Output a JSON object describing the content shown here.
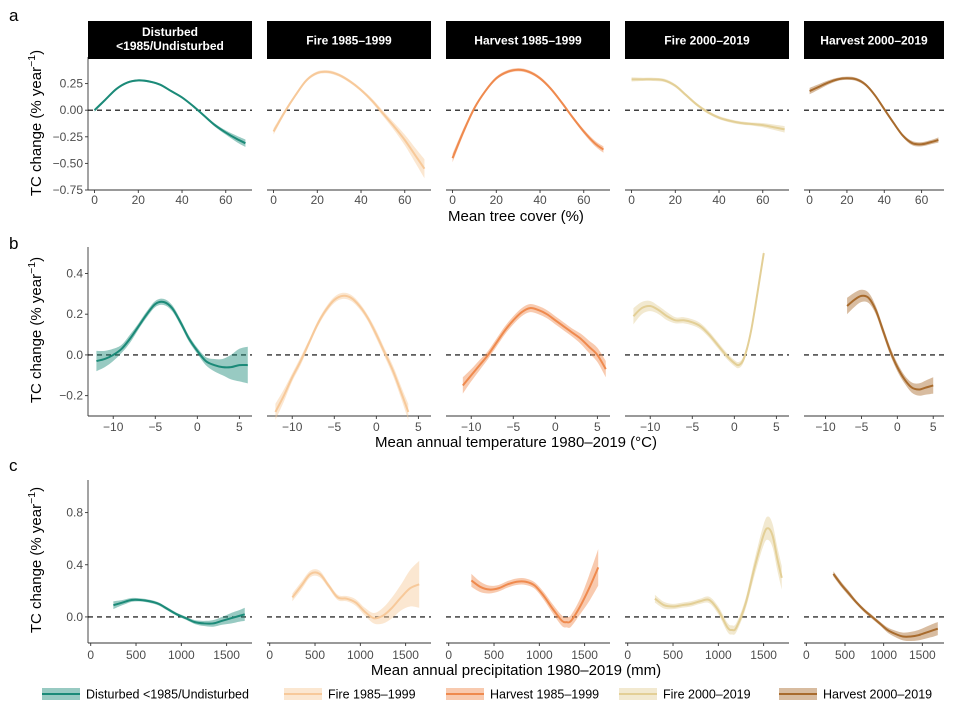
{
  "colors": {
    "Disturbed <1985/Undisturbed": "#1b8a78",
    "Fire 1985–1999": "#f7c99a",
    "Harvest 1985–1999": "#ef8a4e",
    "Fire 2000–2019": "#e3cf96",
    "Harvest 2000–2019": "#a86b2d"
  },
  "panel_letters": [
    "a",
    "b",
    "c"
  ],
  "legend": {
    "entries": [
      "Disturbed <1985/Undisturbed",
      "Fire 1985–1999",
      "Harvest 1985–1999",
      "Fire 2000–2019",
      "Harvest 2000–2019"
    ],
    "placement": "bottom"
  },
  "chart_data": [
    {
      "type": "line",
      "panel": "a",
      "xlabel": "Mean tree cover (%)",
      "ylabel": "TC change (% year⁻¹)",
      "xlim": [
        -3,
        72
      ],
      "ylim": [
        -0.75,
        0.5
      ],
      "xticks": [
        0,
        20,
        40,
        60
      ],
      "yticks": [
        -0.75,
        -0.5,
        -0.25,
        0.0,
        0.25
      ],
      "ytick_labels": [
        "−0.75",
        "−0.50",
        "−0.25",
        "0.00",
        "0.25"
      ],
      "reference_line": 0,
      "facets": [
        {
          "title": "Disturbed\n<1985/Undisturbed",
          "name": "Disturbed <1985/Undisturbed",
          "x": [
            0,
            5,
            10,
            15,
            20,
            25,
            30,
            35,
            40,
            45,
            50,
            55,
            60,
            65,
            69
          ],
          "y": [
            0.0,
            0.1,
            0.2,
            0.26,
            0.28,
            0.27,
            0.24,
            0.18,
            0.12,
            0.04,
            -0.05,
            -0.14,
            -0.21,
            -0.27,
            -0.31
          ],
          "band": [
            0.015,
            0.012,
            0.01,
            0.01,
            0.01,
            0.01,
            0.01,
            0.01,
            0.01,
            0.01,
            0.012,
            0.015,
            0.02,
            0.03,
            0.035
          ]
        },
        {
          "title": "Fire 1985–1999",
          "name": "Fire 1985–1999",
          "x": [
            0,
            5,
            10,
            15,
            20,
            25,
            30,
            35,
            40,
            45,
            50,
            55,
            60,
            65,
            69
          ],
          "y": [
            -0.2,
            -0.02,
            0.14,
            0.28,
            0.35,
            0.36,
            0.33,
            0.27,
            0.19,
            0.09,
            -0.03,
            -0.15,
            -0.28,
            -0.43,
            -0.55
          ],
          "band": [
            0.03,
            0.02,
            0.015,
            0.015,
            0.015,
            0.015,
            0.015,
            0.015,
            0.015,
            0.02,
            0.025,
            0.035,
            0.05,
            0.07,
            0.09
          ]
        },
        {
          "title": "Harvest 1985–1999",
          "name": "Harvest 1985–1999",
          "x": [
            0,
            5,
            10,
            15,
            20,
            25,
            30,
            35,
            40,
            45,
            50,
            55,
            60,
            65,
            69
          ],
          "y": [
            -0.45,
            -0.2,
            0.02,
            0.18,
            0.3,
            0.36,
            0.38,
            0.36,
            0.3,
            0.2,
            0.07,
            -0.07,
            -0.2,
            -0.31,
            -0.37
          ],
          "band": [
            0.04,
            0.03,
            0.02,
            0.015,
            0.015,
            0.015,
            0.015,
            0.015,
            0.015,
            0.015,
            0.015,
            0.015,
            0.02,
            0.025,
            0.03
          ]
        },
        {
          "title": "Fire 2000–2019",
          "name": "Fire 2000–2019",
          "x": [
            0,
            5,
            10,
            15,
            20,
            25,
            30,
            35,
            40,
            45,
            50,
            55,
            60,
            65,
            70
          ],
          "y": [
            0.29,
            0.29,
            0.29,
            0.28,
            0.23,
            0.14,
            0.05,
            -0.02,
            -0.07,
            -0.1,
            -0.12,
            -0.13,
            -0.14,
            -0.16,
            -0.18
          ],
          "band": [
            0.02,
            0.015,
            0.015,
            0.015,
            0.015,
            0.015,
            0.015,
            0.015,
            0.015,
            0.015,
            0.015,
            0.015,
            0.02,
            0.025,
            0.03
          ]
        },
        {
          "title": "Harvest 2000–2019",
          "name": "Harvest 2000–2019",
          "x": [
            0,
            5,
            10,
            15,
            20,
            25,
            30,
            35,
            40,
            45,
            50,
            55,
            60,
            65,
            69
          ],
          "y": [
            0.18,
            0.22,
            0.26,
            0.29,
            0.3,
            0.29,
            0.24,
            0.14,
            0.01,
            -0.12,
            -0.24,
            -0.31,
            -0.32,
            -0.3,
            -0.28
          ],
          "band": [
            0.03,
            0.025,
            0.02,
            0.015,
            0.015,
            0.015,
            0.015,
            0.015,
            0.015,
            0.015,
            0.015,
            0.02,
            0.02,
            0.02,
            0.025
          ]
        }
      ]
    },
    {
      "type": "line",
      "panel": "b",
      "xlabel": "Mean annual temperature 1980–2019 (°C)",
      "ylabel": "TC change (% year⁻¹)",
      "xlim": [
        -13,
        6.5
      ],
      "ylim": [
        -0.3,
        0.53
      ],
      "xticks": [
        -10,
        -5,
        0,
        5
      ],
      "xtick_labels": [
        "−10",
        "−5",
        "0",
        "5"
      ],
      "yticks": [
        -0.2,
        0.0,
        0.2,
        0.4
      ],
      "ytick_labels": [
        "−0.2",
        "0.0",
        "0.2",
        "0.4"
      ],
      "reference_line": 0,
      "facets": [
        {
          "name": "Disturbed <1985/Undisturbed",
          "x": [
            -12,
            -11,
            -10,
            -9,
            -8,
            -7,
            -6,
            -5,
            -4,
            -3,
            -2,
            -1,
            0,
            1,
            2,
            3,
            4,
            5,
            6
          ],
          "y": [
            -0.03,
            -0.02,
            0.0,
            0.03,
            0.08,
            0.14,
            0.2,
            0.25,
            0.26,
            0.23,
            0.16,
            0.08,
            0.02,
            -0.03,
            -0.05,
            -0.06,
            -0.06,
            -0.05,
            -0.05
          ],
          "band": [
            0.05,
            0.04,
            0.03,
            0.02,
            0.02,
            0.015,
            0.015,
            0.015,
            0.015,
            0.015,
            0.015,
            0.015,
            0.015,
            0.02,
            0.03,
            0.04,
            0.06,
            0.08,
            0.09
          ]
        },
        {
          "name": "Fire 1985–1999",
          "x": [
            -12,
            -11,
            -10,
            -9,
            -8,
            -7,
            -6,
            -5,
            -4,
            -3,
            -2,
            -1,
            0,
            1,
            2,
            3,
            3.8
          ],
          "y": [
            -0.28,
            -0.2,
            -0.11,
            -0.03,
            0.06,
            0.15,
            0.22,
            0.27,
            0.29,
            0.28,
            0.24,
            0.18,
            0.1,
            0.01,
            -0.08,
            -0.19,
            -0.28
          ],
          "band": [
            0.04,
            0.03,
            0.02,
            0.02,
            0.015,
            0.015,
            0.015,
            0.015,
            0.015,
            0.015,
            0.015,
            0.015,
            0.02,
            0.02,
            0.025,
            0.03,
            0.04
          ]
        },
        {
          "name": "Harvest 1985–1999",
          "x": [
            -11,
            -10,
            -9,
            -8,
            -7,
            -6,
            -5,
            -4,
            -3,
            -2,
            -1,
            0,
            1,
            2,
            3,
            4,
            5,
            6
          ],
          "y": [
            -0.15,
            -0.1,
            -0.05,
            0.0,
            0.06,
            0.12,
            0.17,
            0.21,
            0.23,
            0.22,
            0.2,
            0.17,
            0.14,
            0.11,
            0.08,
            0.04,
            0.0,
            -0.07
          ],
          "band": [
            0.04,
            0.03,
            0.025,
            0.02,
            0.02,
            0.02,
            0.02,
            0.02,
            0.02,
            0.02,
            0.02,
            0.02,
            0.02,
            0.02,
            0.025,
            0.03,
            0.035,
            0.04
          ]
        },
        {
          "name": "Fire 2000–2019",
          "x": [
            -12,
            -11,
            -10,
            -9,
            -8,
            -7,
            -6,
            -5,
            -4,
            -3,
            -2,
            -1,
            0,
            0.5,
            1,
            1.5,
            2,
            2.5,
            3,
            3.5
          ],
          "y": [
            0.19,
            0.23,
            0.24,
            0.22,
            0.19,
            0.17,
            0.17,
            0.16,
            0.14,
            0.1,
            0.05,
            0.0,
            -0.04,
            -0.05,
            -0.03,
            0.03,
            0.12,
            0.24,
            0.37,
            0.5
          ],
          "band": [
            0.04,
            0.03,
            0.025,
            0.02,
            0.02,
            0.015,
            0.015,
            0.015,
            0.015,
            0.015,
            0.015,
            0.015,
            0.015,
            0.015,
            0.015,
            0.015,
            0.015,
            0.015,
            0.015,
            0.015
          ]
        },
        {
          "name": "Harvest 2000–2019",
          "x": [
            -7,
            -6,
            -5,
            -4,
            -3,
            -2,
            -1,
            0,
            1,
            2,
            3,
            4,
            5
          ],
          "y": [
            0.24,
            0.27,
            0.29,
            0.28,
            0.22,
            0.12,
            0.02,
            -0.06,
            -0.12,
            -0.16,
            -0.17,
            -0.16,
            -0.15
          ],
          "band": [
            0.04,
            0.035,
            0.03,
            0.025,
            0.02,
            0.02,
            0.02,
            0.02,
            0.02,
            0.025,
            0.03,
            0.035,
            0.04
          ]
        }
      ]
    },
    {
      "type": "line",
      "panel": "c",
      "xlabel": "Mean annual precipitation 1980–2019 (mm)",
      "ylabel": "TC change (% year⁻¹)",
      "xlim": [
        -30,
        1780
      ],
      "ylim": [
        -0.2,
        1.05
      ],
      "xticks": [
        0,
        500,
        1000,
        1500
      ],
      "yticks": [
        0.0,
        0.4,
        0.8
      ],
      "ytick_labels": [
        "0.0",
        "0.4",
        "0.8"
      ],
      "reference_line": 0,
      "facets": [
        {
          "name": "Disturbed <1985/Undisturbed",
          "x": [
            250,
            350,
            450,
            550,
            650,
            750,
            850,
            950,
            1050,
            1150,
            1250,
            1350,
            1450,
            1550,
            1650,
            1700
          ],
          "y": [
            0.09,
            0.11,
            0.13,
            0.13,
            0.12,
            0.1,
            0.06,
            0.02,
            -0.01,
            -0.04,
            -0.05,
            -0.05,
            -0.03,
            -0.01,
            0.01,
            0.02
          ],
          "band": [
            0.03,
            0.02,
            0.015,
            0.012,
            0.012,
            0.012,
            0.012,
            0.012,
            0.012,
            0.015,
            0.02,
            0.025,
            0.03,
            0.04,
            0.045,
            0.05
          ]
        },
        {
          "name": "Fire 1985–1999",
          "x": [
            250,
            350,
            450,
            550,
            650,
            750,
            850,
            950,
            1050,
            1150,
            1250,
            1350,
            1450,
            1550,
            1650
          ],
          "y": [
            0.15,
            0.24,
            0.33,
            0.33,
            0.24,
            0.15,
            0.14,
            0.11,
            0.04,
            -0.01,
            0.01,
            0.07,
            0.15,
            0.22,
            0.25
          ],
          "band": [
            0.03,
            0.03,
            0.025,
            0.025,
            0.02,
            0.02,
            0.02,
            0.025,
            0.03,
            0.04,
            0.06,
            0.08,
            0.1,
            0.14,
            0.18
          ]
        },
        {
          "name": "Harvest 1985–1999",
          "x": [
            250,
            350,
            450,
            550,
            650,
            750,
            850,
            950,
            1050,
            1150,
            1250,
            1300,
            1350,
            1450,
            1550,
            1650
          ],
          "y": [
            0.28,
            0.23,
            0.21,
            0.22,
            0.25,
            0.27,
            0.27,
            0.24,
            0.16,
            0.06,
            -0.03,
            -0.04,
            -0.03,
            0.08,
            0.22,
            0.38
          ],
          "band": [
            0.05,
            0.04,
            0.03,
            0.025,
            0.025,
            0.025,
            0.025,
            0.025,
            0.03,
            0.035,
            0.04,
            0.04,
            0.045,
            0.06,
            0.1,
            0.14
          ]
        },
        {
          "name": "Fire 2000–2019",
          "x": [
            300,
            400,
            500,
            600,
            700,
            800,
            900,
            1000,
            1100,
            1150,
            1200,
            1300,
            1400,
            1500,
            1550,
            1600,
            1650,
            1700
          ],
          "y": [
            0.14,
            0.09,
            0.08,
            0.09,
            0.1,
            0.12,
            0.13,
            0.05,
            -0.08,
            -0.1,
            -0.08,
            0.1,
            0.38,
            0.63,
            0.68,
            0.62,
            0.45,
            0.3
          ],
          "band": [
            0.03,
            0.025,
            0.02,
            0.02,
            0.02,
            0.02,
            0.025,
            0.03,
            0.035,
            0.035,
            0.035,
            0.04,
            0.06,
            0.08,
            0.09,
            0.09,
            0.09,
            0.09
          ]
        },
        {
          "name": "Harvest 2000–2019",
          "x": [
            350,
            450,
            550,
            650,
            750,
            850,
            950,
            1050,
            1150,
            1250,
            1350,
            1450,
            1550,
            1650,
            1700
          ],
          "y": [
            0.33,
            0.25,
            0.18,
            0.11,
            0.05,
            0.0,
            -0.05,
            -0.1,
            -0.13,
            -0.15,
            -0.15,
            -0.14,
            -0.12,
            -0.1,
            -0.09
          ],
          "band": [
            0.02,
            0.02,
            0.02,
            0.015,
            0.015,
            0.015,
            0.015,
            0.02,
            0.025,
            0.03,
            0.035,
            0.04,
            0.045,
            0.05,
            0.05
          ]
        }
      ]
    }
  ]
}
